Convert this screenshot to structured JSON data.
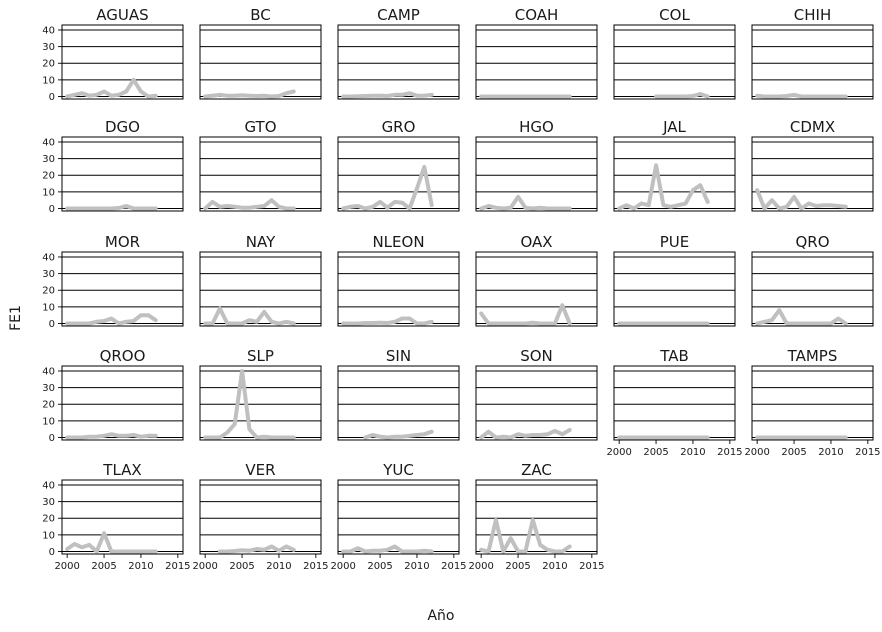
{
  "chart_data": {
    "type": "line",
    "layout": "small-multiples",
    "xlabel": "Año",
    "ylabel": "FE1",
    "xlim": [
      1999.3,
      2015.7
    ],
    "ylim": [
      -1.5,
      43
    ],
    "x_ticks": [
      2000,
      2005,
      2010,
      2015
    ],
    "x_tick_labels": [
      "2000",
      "2005",
      "2010",
      "2015"
    ],
    "y_ticks": [
      0,
      10,
      20,
      30,
      40
    ],
    "y_tick_labels": [
      "0",
      "10",
      "20",
      "30",
      "40"
    ],
    "grid": true,
    "line_color": "#c0c0c0",
    "panels": [
      {
        "title": "AGUAS",
        "x": [
          2000,
          2001,
          2002,
          2003,
          2004,
          2005,
          2006,
          2007,
          2008,
          2009,
          2010,
          2011,
          2012
        ],
        "y": [
          0,
          1,
          2,
          0.5,
          1,
          3,
          0.5,
          1,
          3,
          10,
          3,
          0,
          0.5
        ]
      },
      {
        "title": "BC",
        "x": [
          2000,
          2001,
          2002,
          2003,
          2004,
          2005,
          2006,
          2007,
          2008,
          2009,
          2010,
          2011,
          2012
        ],
        "y": [
          0,
          0.5,
          1,
          0.5,
          0.5,
          0.8,
          0.5,
          0.3,
          0.5,
          0,
          0.3,
          2,
          3
        ]
      },
      {
        "title": "CAMP",
        "x": [
          2000,
          2001,
          2002,
          2003,
          2004,
          2005,
          2006,
          2007,
          2008,
          2009,
          2010,
          2011,
          2012
        ],
        "y": [
          0,
          0,
          0.2,
          0.3,
          0.5,
          0.5,
          0.3,
          1,
          1,
          2,
          0.5,
          0.5,
          1
        ]
      },
      {
        "title": "COAH",
        "x": [
          2000,
          2001,
          2002,
          2003,
          2004,
          2005,
          2006,
          2007,
          2008,
          2009,
          2010,
          2011,
          2012
        ],
        "y": [
          0,
          0,
          0,
          0,
          0,
          0,
          0,
          0,
          0,
          0,
          0,
          0,
          0
        ]
      },
      {
        "title": "COL",
        "x": [
          2005,
          2006,
          2007,
          2008,
          2009,
          2010,
          2011,
          2012
        ],
        "y": [
          0,
          0,
          0,
          0,
          0,
          0.3,
          1.5,
          0
        ]
      },
      {
        "title": "CHIH",
        "x": [
          2000,
          2001,
          2002,
          2003,
          2004,
          2005,
          2006,
          2007,
          2008,
          2009,
          2010,
          2011,
          2012
        ],
        "y": [
          0.5,
          0,
          0,
          0,
          0.3,
          1,
          0,
          0,
          0,
          0,
          0,
          0,
          0
        ]
      },
      {
        "title": "DGO",
        "x": [
          2000,
          2001,
          2002,
          2003,
          2004,
          2005,
          2006,
          2007,
          2008,
          2009,
          2010,
          2011,
          2012
        ],
        "y": [
          0,
          0,
          0,
          0,
          0,
          0,
          0,
          0.3,
          1.5,
          0,
          0,
          0,
          0
        ]
      },
      {
        "title": "GTO",
        "x": [
          2000,
          2001,
          2002,
          2003,
          2004,
          2005,
          2006,
          2007,
          2008,
          2009,
          2010,
          2011,
          2012
        ],
        "y": [
          0,
          4,
          1,
          1.5,
          1,
          0.5,
          0.5,
          1,
          1.5,
          5,
          1,
          0,
          0
        ]
      },
      {
        "title": "GRO",
        "x": [
          2000,
          2001,
          2002,
          2003,
          2004,
          2005,
          2006,
          2007,
          2008,
          2009,
          2010,
          2011,
          2012
        ],
        "y": [
          0,
          1,
          1.5,
          0,
          1,
          4,
          0.5,
          4,
          3.5,
          0,
          12,
          25,
          2
        ]
      },
      {
        "title": "HGO",
        "x": [
          2000,
          2001,
          2002,
          2003,
          2004,
          2005,
          2006,
          2007,
          2008,
          2009,
          2010,
          2011,
          2012
        ],
        "y": [
          0,
          1.5,
          0.5,
          0,
          0.5,
          7,
          0.5,
          0,
          0.5,
          0,
          0,
          0,
          0
        ]
      },
      {
        "title": "JAL",
        "x": [
          2000,
          2001,
          2002,
          2003,
          2004,
          2005,
          2006,
          2007,
          2008,
          2009,
          2010,
          2011,
          2012
        ],
        "y": [
          0,
          2,
          0,
          3,
          2,
          26,
          2,
          1,
          2,
          3,
          11,
          14,
          4
        ]
      },
      {
        "title": "CDMX",
        "x": [
          2000,
          2001,
          2002,
          2003,
          2004,
          2005,
          2006,
          2007,
          2008,
          2009,
          2010,
          2011,
          2012
        ],
        "y": [
          11,
          0,
          5,
          0,
          1,
          7,
          0,
          3,
          1.5,
          2,
          2,
          1.5,
          1
        ]
      },
      {
        "title": "MOR",
        "x": [
          2000,
          2001,
          2002,
          2003,
          2004,
          2005,
          2006,
          2007,
          2008,
          2009,
          2010,
          2011,
          2012
        ],
        "y": [
          0,
          0,
          0,
          0,
          1,
          1.5,
          3,
          0,
          1,
          1.5,
          5,
          5,
          2
        ]
      },
      {
        "title": "NAY",
        "x": [
          2000,
          2001,
          2002,
          2003,
          2004,
          2005,
          2006,
          2007,
          2008,
          2009,
          2010,
          2011,
          2012
        ],
        "y": [
          0,
          0,
          9,
          0,
          0,
          0,
          2,
          1,
          7,
          1,
          0,
          1,
          0
        ]
      },
      {
        "title": "NLEON",
        "x": [
          2000,
          2001,
          2002,
          2003,
          2004,
          2005,
          2006,
          2007,
          2008,
          2009,
          2010,
          2011,
          2012
        ],
        "y": [
          0,
          0,
          0,
          0.3,
          0.3,
          0.5,
          0.3,
          1,
          3,
          3,
          0,
          0,
          1
        ]
      },
      {
        "title": "OAX",
        "x": [
          2000,
          2001,
          2002,
          2003,
          2004,
          2005,
          2006,
          2007,
          2008,
          2009,
          2010,
          2011,
          2012
        ],
        "y": [
          6,
          0,
          0,
          0,
          0,
          0,
          0,
          0.5,
          0,
          0,
          0,
          11,
          0
        ]
      },
      {
        "title": "PUE",
        "x": [
          2000,
          2001,
          2002,
          2003,
          2004,
          2005,
          2006,
          2007,
          2008,
          2009,
          2010,
          2011,
          2012
        ],
        "y": [
          0,
          0,
          0,
          0,
          0,
          0,
          0,
          0,
          0,
          0,
          0,
          0,
          0
        ]
      },
      {
        "title": "QRO",
        "x": [
          2000,
          2001,
          2002,
          2003,
          2004,
          2005,
          2006,
          2007,
          2008,
          2009,
          2010,
          2011,
          2012
        ],
        "y": [
          0,
          1,
          2,
          8,
          0,
          0,
          0,
          0,
          0,
          0,
          0,
          3,
          0
        ]
      },
      {
        "title": "QROO",
        "x": [
          2000,
          2001,
          2002,
          2003,
          2004,
          2005,
          2006,
          2007,
          2008,
          2009,
          2010,
          2011,
          2012
        ],
        "y": [
          0,
          0,
          0,
          0.5,
          0.5,
          1,
          2,
          1,
          1,
          1.5,
          0.5,
          1,
          1
        ]
      },
      {
        "title": "SLP",
        "x": [
          2000,
          2001,
          2002,
          2003,
          2004,
          2005,
          2006,
          2007,
          2008,
          2009,
          2010,
          2011,
          2012
        ],
        "y": [
          0,
          0,
          0,
          3,
          8,
          40,
          5,
          0,
          0.5,
          0,
          0,
          0,
          0
        ]
      },
      {
        "title": "SIN",
        "x": [
          2003,
          2004,
          2005,
          2006,
          2007,
          2008,
          2009,
          2010,
          2011,
          2012
        ],
        "y": [
          0,
          1.5,
          0.5,
          0,
          0.5,
          0.5,
          1,
          1.5,
          2,
          3.5
        ]
      },
      {
        "title": "SON",
        "x": [
          2000,
          2001,
          2002,
          2003,
          2004,
          2005,
          2006,
          2007,
          2008,
          2009,
          2010,
          2011,
          2012
        ],
        "y": [
          0,
          3.5,
          0,
          0.5,
          0,
          2,
          1,
          1.5,
          1.5,
          2,
          4,
          2,
          4.5
        ]
      },
      {
        "title": "TAB",
        "x": [
          2000,
          2001,
          2002,
          2003,
          2004,
          2005,
          2006,
          2007,
          2008,
          2009,
          2010,
          2011,
          2012
        ],
        "y": [
          0,
          0,
          0,
          0,
          0,
          0,
          0,
          0,
          0,
          0,
          0,
          0,
          0
        ]
      },
      {
        "title": "TAMPS",
        "x": [
          2000,
          2001,
          2002,
          2003,
          2004,
          2005,
          2006,
          2007,
          2008,
          2009,
          2010,
          2011,
          2012
        ],
        "y": [
          0,
          0,
          0,
          0,
          0,
          0,
          0,
          0,
          0,
          0,
          0,
          0,
          0
        ]
      },
      {
        "title": "TLAX",
        "x": [
          2000,
          2001,
          2002,
          2003,
          2004,
          2005,
          2006,
          2007,
          2008,
          2009,
          2010,
          2011,
          2012
        ],
        "y": [
          1.5,
          4.5,
          2.5,
          4,
          0,
          11,
          0,
          0,
          0,
          0,
          0,
          0,
          0
        ]
      },
      {
        "title": "VER",
        "x": [
          2002,
          2003,
          2004,
          2005,
          2006,
          2007,
          2008,
          2009,
          2010,
          2011,
          2012
        ],
        "y": [
          0,
          0,
          0.3,
          0.8,
          0.5,
          1.5,
          1,
          3,
          0.5,
          3,
          1
        ]
      },
      {
        "title": "YUC",
        "x": [
          2000,
          2001,
          2002,
          2003,
          2004,
          2005,
          2006,
          2007,
          2008,
          2009,
          2010,
          2011,
          2012
        ],
        "y": [
          0,
          0,
          2,
          0,
          0.5,
          0.5,
          1,
          3,
          0,
          0,
          0,
          0.5,
          0
        ]
      },
      {
        "title": "ZAC",
        "x": [
          2000,
          2001,
          2002,
          2003,
          2004,
          2005,
          2006,
          2007,
          2008,
          2009,
          2010,
          2011,
          2012
        ],
        "y": [
          1,
          0,
          19,
          0,
          8,
          0,
          0,
          19,
          4,
          1,
          0,
          0,
          3
        ]
      }
    ]
  }
}
